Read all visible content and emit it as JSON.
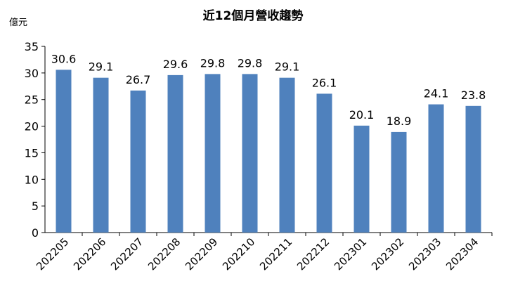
{
  "chart_data": {
    "type": "bar",
    "title": "近12個月營收趨勢",
    "ylabel": "億元",
    "xlabel": "",
    "categories": [
      "202205",
      "202206",
      "202207",
      "202208",
      "202209",
      "202210",
      "202211",
      "202212",
      "202301",
      "202302",
      "202303",
      "202304"
    ],
    "values": [
      30.6,
      29.1,
      26.7,
      29.6,
      29.8,
      29.8,
      29.1,
      26.1,
      20.1,
      18.9,
      24.1,
      23.8
    ],
    "value_labels": [
      "30.6",
      "29.1",
      "26.7",
      "29.6",
      "29.8",
      "29.8",
      "29.1",
      "26.1",
      "20.1",
      "18.9",
      "24.1",
      "23.8"
    ],
    "ylim": [
      0,
      35
    ],
    "yticks": [
      "0",
      "5",
      "10",
      "15",
      "20",
      "25",
      "30",
      "35"
    ],
    "grid": false,
    "legend": "none",
    "bar_color": "#4F81BD"
  }
}
